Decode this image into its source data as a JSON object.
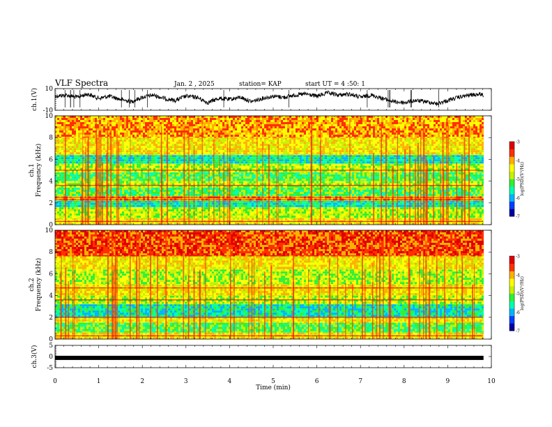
{
  "header": {
    "title": "VLF Spectra",
    "date": "Jan. 2 , 2025",
    "station": "station= KAP",
    "start": "start UT =  4 :50: 1"
  },
  "colors": {
    "palette": [
      "#0000a0",
      "#0040ff",
      "#00b4ff",
      "#00ffb0",
      "#30f030",
      "#c8f000",
      "#ffff00",
      "#ffb000",
      "#ff3000",
      "#e00000",
      "#ffd0d0"
    ],
    "axis": "#000000",
    "trace": "#000000"
  },
  "chart_data": [
    {
      "name": "ch1-waveform",
      "type": "line",
      "ylabel": "ch.1(V)",
      "xlim": [
        0,
        10
      ],
      "ylim": [
        -10,
        10
      ],
      "yticks": [
        "10",
        "-10"
      ],
      "x": [
        0,
        0.25,
        0.5,
        0.75,
        1.0,
        1.25,
        1.5,
        1.75,
        2.0,
        2.25,
        2.5,
        2.75,
        3.0,
        3.25,
        3.5,
        3.75,
        4.0,
        4.25,
        4.5,
        4.75,
        5.0,
        5.25,
        5.5,
        5.75,
        6.0,
        6.25,
        6.5,
        6.75,
        7.0,
        7.25,
        7.5,
        7.75,
        8.0,
        8.25,
        8.5,
        8.75,
        9.0,
        9.25,
        9.5,
        9.75,
        9.82
      ],
      "values": [
        3,
        4,
        2,
        5,
        1,
        3,
        0,
        -2,
        2,
        4,
        1,
        -1,
        3,
        2,
        -3,
        1,
        0,
        2,
        -2,
        1,
        3,
        2,
        4,
        5,
        3,
        6,
        4,
        5,
        2,
        4,
        1,
        -2,
        -3,
        -1,
        -2,
        -4,
        -1,
        2,
        4,
        5,
        4
      ]
    },
    {
      "name": "ch1-spectrogram",
      "type": "heatmap",
      "ylabel": "ch.1\nFrequency (kHz)",
      "xlim": [
        0,
        10
      ],
      "ylim": [
        0,
        10
      ],
      "yticks": [
        "0",
        "2",
        "4",
        "6",
        "8",
        "10"
      ],
      "colorbar": {
        "label": "log(PSD)(V²/Hz)",
        "range": [
          -7,
          -3
        ],
        "ticks": [
          "-3",
          "-4",
          "-5",
          "-6",
          "-7"
        ]
      },
      "bands_khz": [
        {
          "from": 0.0,
          "to": 0.6,
          "level": 6
        },
        {
          "from": 0.6,
          "to": 1.6,
          "level": 5
        },
        {
          "from": 1.6,
          "to": 2.2,
          "level": 3
        },
        {
          "from": 2.2,
          "to": 2.6,
          "level": 7
        },
        {
          "from": 2.6,
          "to": 3.4,
          "level": 4
        },
        {
          "from": 3.4,
          "to": 4.0,
          "level": 5
        },
        {
          "from": 4.0,
          "to": 4.8,
          "level": 4
        },
        {
          "from": 4.8,
          "to": 5.6,
          "level": 5
        },
        {
          "from": 5.6,
          "to": 6.4,
          "level": 3
        },
        {
          "from": 6.4,
          "to": 8.0,
          "level": 6
        },
        {
          "from": 8.0,
          "to": 10.0,
          "level": 7
        }
      ],
      "lines_khz": [
        0.3,
        2.3,
        2.5,
        3.6,
        5.0
      ]
    },
    {
      "name": "ch2-spectrogram",
      "type": "heatmap",
      "ylabel": "ch.2\nFrequency (kHz)",
      "xlim": [
        0,
        10
      ],
      "ylim": [
        0,
        10
      ],
      "yticks": [
        "0",
        "2",
        "4",
        "6",
        "8",
        "10"
      ],
      "colorbar": {
        "label": "log(PSD)(V²/Hz)",
        "range": [
          -7,
          -3
        ],
        "ticks": [
          "-3",
          "-4",
          "-5",
          "-6",
          "-7"
        ]
      },
      "bands_khz": [
        {
          "from": 0.0,
          "to": 0.6,
          "level": 6
        },
        {
          "from": 0.6,
          "to": 1.5,
          "level": 4
        },
        {
          "from": 1.5,
          "to": 2.0,
          "level": 6
        },
        {
          "from": 2.0,
          "to": 3.2,
          "level": 3
        },
        {
          "from": 3.2,
          "to": 4.0,
          "level": 5
        },
        {
          "from": 4.0,
          "to": 5.0,
          "level": 6
        },
        {
          "from": 5.0,
          "to": 6.4,
          "level": 5
        },
        {
          "from": 6.4,
          "to": 7.6,
          "level": 6
        },
        {
          "from": 7.6,
          "to": 10.0,
          "level": 8
        }
      ],
      "lines_khz": [
        0.3,
        2.0,
        3.6,
        4.7
      ]
    },
    {
      "name": "ch3-waveform",
      "type": "line",
      "ylabel": "ch.3(V)",
      "xlim": [
        0,
        10
      ],
      "ylim": [
        -5,
        5
      ],
      "yticks": [
        "5",
        "0",
        "-5"
      ],
      "x": [
        0,
        9.82
      ],
      "values": [
        -0.6,
        -0.6
      ]
    }
  ],
  "xaxis": {
    "label": "Time (min)",
    "ticks": [
      "0",
      "1",
      "2",
      "3",
      "4",
      "5",
      "6",
      "7",
      "8",
      "9",
      "10"
    ]
  }
}
